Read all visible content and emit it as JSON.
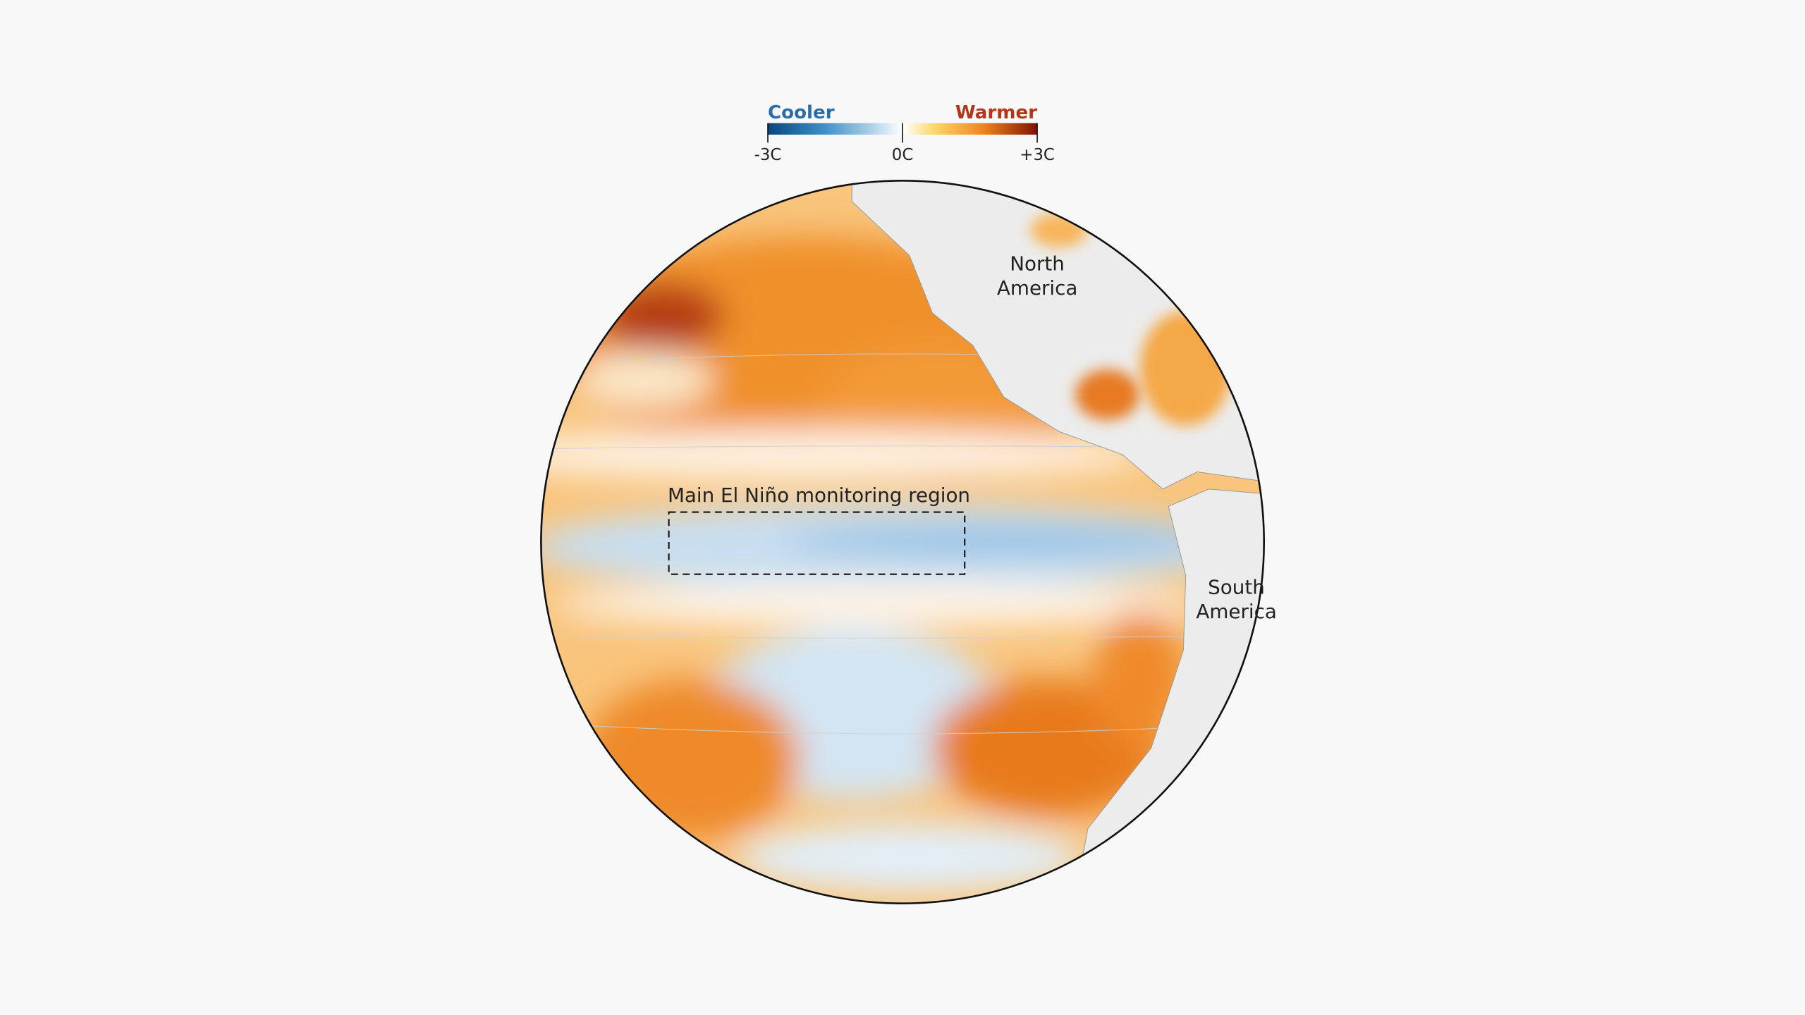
{
  "legend": {
    "low_label": "Cooler",
    "high_label": "Warmer",
    "ticks": [
      {
        "value": -3,
        "label": "-3C"
      },
      {
        "value": 0,
        "label": "0C"
      },
      {
        "value": 3,
        "label": "+3C"
      }
    ]
  },
  "map": {
    "region_label": "Main El Niño monitoring region",
    "north_america": "North America",
    "south_america": "South America"
  }
}
